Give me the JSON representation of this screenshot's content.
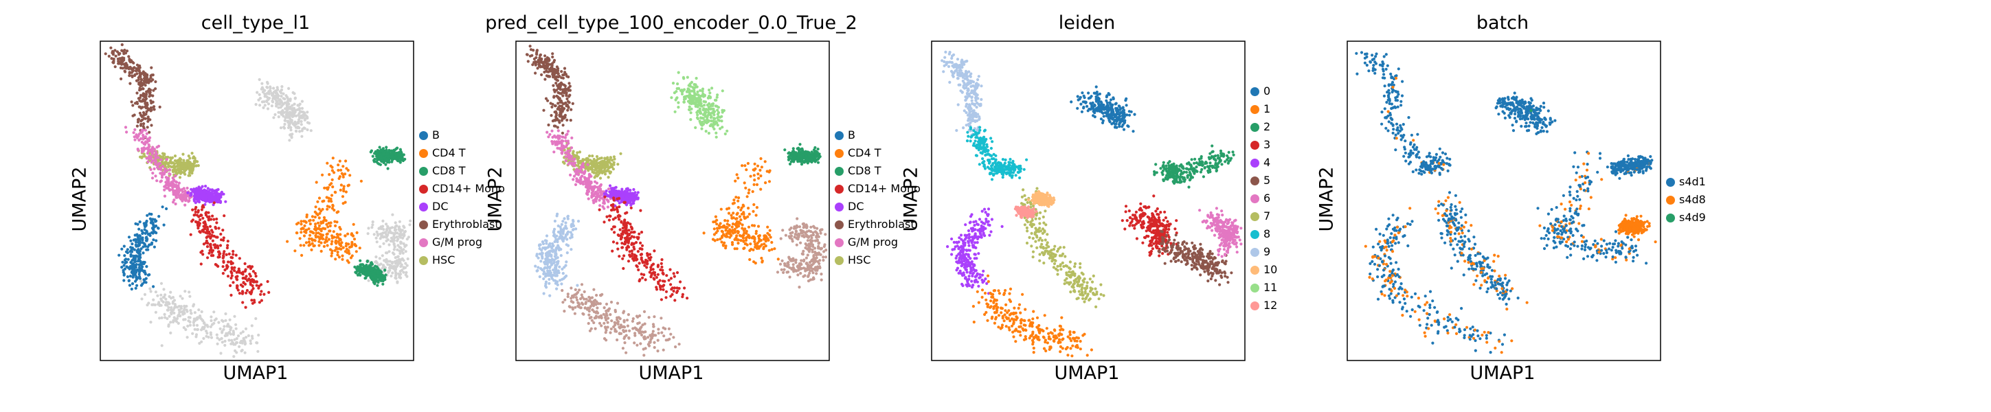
{
  "chart_data": [
    {
      "type": "scatter",
      "title": "cell_type_l1",
      "xlabel": "UMAP1",
      "ylabel": "UMAP2",
      "grid": false,
      "legend_position": "right",
      "categories": [
        {
          "name": "B",
          "color": "#1f77b4"
        },
        {
          "name": "CD4 T",
          "color": "#ff7f0e"
        },
        {
          "name": "CD8 T",
          "color": "#279e68"
        },
        {
          "name": "CD14+ Mono",
          "color": "#d62728"
        },
        {
          "name": "DC",
          "color": "#aa40fc"
        },
        {
          "name": "Erythroblast",
          "color": "#8c564b"
        },
        {
          "name": "G/M prog",
          "color": "#e377c2"
        },
        {
          "name": "HSC",
          "color": "#b5bd61"
        }
      ],
      "unlabeled_color": "#d3d3d3",
      "clusters": [
        {
          "label": "Erythroblast",
          "path": [
            [
              0.05,
              0.96
            ],
            [
              0.15,
              0.88
            ],
            [
              0.14,
              0.74
            ]
          ],
          "spread": 0.03
        },
        {
          "label": "HSC",
          "path": [
            [
              0.15,
              0.65
            ],
            [
              0.25,
              0.6
            ],
            [
              0.3,
              0.62
            ]
          ],
          "spread": 0.025
        },
        {
          "label": "G/M prog",
          "path": [
            [
              0.12,
              0.72
            ],
            [
              0.22,
              0.56
            ],
            [
              0.28,
              0.5
            ]
          ],
          "spread": 0.025
        },
        {
          "label": "DC",
          "path": [
            [
              0.3,
              0.52
            ],
            [
              0.38,
              0.51
            ]
          ],
          "spread": 0.02
        },
        {
          "label": "CD14+ Mono",
          "path": [
            [
              0.31,
              0.48
            ],
            [
              0.38,
              0.33
            ],
            [
              0.51,
              0.21
            ]
          ],
          "spread": 0.04
        },
        {
          "label": "B",
          "path": [
            [
              0.18,
              0.44
            ],
            [
              0.1,
              0.33
            ],
            [
              0.12,
              0.25
            ]
          ],
          "spread": 0.035
        },
        {
          "label": null,
          "path": [
            [
              0.18,
              0.2
            ],
            [
              0.3,
              0.12
            ],
            [
              0.48,
              0.05
            ]
          ],
          "spread": 0.05
        },
        {
          "label": "CD4 T",
          "path": [
            [
              0.77,
              0.62
            ],
            [
              0.72,
              0.45
            ],
            [
              0.65,
              0.4
            ],
            [
              0.75,
              0.38
            ],
            [
              0.8,
              0.35
            ]
          ],
          "spread": 0.045
        },
        {
          "label": "CD8 T",
          "path": [
            [
              0.88,
              0.64
            ],
            [
              0.96,
              0.64
            ]
          ],
          "spread": 0.02
        },
        {
          "label": null,
          "path": [
            [
              0.88,
              0.4
            ],
            [
              0.96,
              0.4
            ],
            [
              0.95,
              0.28
            ],
            [
              0.86,
              0.3
            ]
          ],
          "spread": 0.035
        },
        {
          "label": "CD8 T",
          "path": [
            [
              0.83,
              0.29
            ],
            [
              0.9,
              0.26
            ]
          ],
          "spread": 0.02
        },
        {
          "label": null,
          "path": [
            [
              0.53,
              0.84
            ],
            [
              0.6,
              0.8
            ],
            [
              0.63,
              0.73
            ]
          ],
          "spread": 0.04
        }
      ]
    },
    {
      "type": "scatter",
      "title": "pred_cell_type_100_encoder_0.0_True_2",
      "xlabel": "UMAP1",
      "ylabel": "UMAP2",
      "grid": false,
      "legend_position": "right",
      "categories": [
        {
          "name": "B",
          "color": "#1f77b4"
        },
        {
          "name": "CD4 T",
          "color": "#ff7f0e"
        },
        {
          "name": "CD8 T",
          "color": "#279e68"
        },
        {
          "name": "CD14+ Mono",
          "color": "#d62728"
        },
        {
          "name": "DC",
          "color": "#aa40fc"
        },
        {
          "name": "Erythroblast",
          "color": "#8c564b"
        },
        {
          "name": "G/M prog",
          "color": "#e377c2"
        },
        {
          "name": "HSC",
          "color": "#b5bd61"
        }
      ],
      "extra_colors": [
        "#c49c94",
        "#98df8a",
        "#aec7e8"
      ],
      "clusters": [
        {
          "color_index": 5,
          "path": [
            [
              0.05,
              0.96
            ],
            [
              0.15,
              0.88
            ],
            [
              0.14,
              0.74
            ]
          ],
          "spread": 0.03
        },
        {
          "color_index": 7,
          "path": [
            [
              0.15,
              0.65
            ],
            [
              0.25,
              0.6
            ],
            [
              0.3,
              0.62
            ]
          ],
          "spread": 0.025
        },
        {
          "color_index": 6,
          "path": [
            [
              0.12,
              0.72
            ],
            [
              0.22,
              0.56
            ],
            [
              0.28,
              0.5
            ]
          ],
          "spread": 0.025
        },
        {
          "color_index": 4,
          "path": [
            [
              0.3,
              0.52
            ],
            [
              0.38,
              0.51
            ]
          ],
          "spread": 0.02
        },
        {
          "color_index": 3,
          "path": [
            [
              0.31,
              0.48
            ],
            [
              0.38,
              0.33
            ],
            [
              0.51,
              0.21
            ]
          ],
          "spread": 0.04
        },
        {
          "extra_index": 2,
          "path": [
            [
              0.18,
              0.44
            ],
            [
              0.1,
              0.33
            ],
            [
              0.12,
              0.25
            ]
          ],
          "spread": 0.035
        },
        {
          "extra_index": 0,
          "path": [
            [
              0.18,
              0.2
            ],
            [
              0.3,
              0.12
            ],
            [
              0.48,
              0.05
            ]
          ],
          "spread": 0.05
        },
        {
          "color_index": 1,
          "path": [
            [
              0.77,
              0.62
            ],
            [
              0.72,
              0.45
            ],
            [
              0.65,
              0.4
            ],
            [
              0.75,
              0.38
            ],
            [
              0.8,
              0.35
            ]
          ],
          "spread": 0.045
        },
        {
          "color_index": 2,
          "path": [
            [
              0.88,
              0.64
            ],
            [
              0.96,
              0.64
            ]
          ],
          "spread": 0.02
        },
        {
          "extra_index": 0,
          "path": [
            [
              0.88,
              0.4
            ],
            [
              0.96,
              0.4
            ],
            [
              0.95,
              0.28
            ],
            [
              0.86,
              0.3
            ]
          ],
          "spread": 0.035
        },
        {
          "extra_index": 1,
          "path": [
            [
              0.53,
              0.84
            ],
            [
              0.6,
              0.8
            ],
            [
              0.63,
              0.73
            ]
          ],
          "spread": 0.04
        }
      ]
    },
    {
      "type": "scatter",
      "title": "leiden",
      "xlabel": "UMAP1",
      "ylabel": "UMAP2",
      "grid": false,
      "legend_position": "right",
      "categories": [
        {
          "name": "0",
          "color": "#1f77b4"
        },
        {
          "name": "1",
          "color": "#ff7f0e"
        },
        {
          "name": "2",
          "color": "#279e68"
        },
        {
          "name": "3",
          "color": "#d62728"
        },
        {
          "name": "4",
          "color": "#aa40fc"
        },
        {
          "name": "5",
          "color": "#8c564b"
        },
        {
          "name": "6",
          "color": "#e377c2"
        },
        {
          "name": "7",
          "color": "#b5bd61"
        },
        {
          "name": "8",
          "color": "#17becf"
        },
        {
          "name": "9",
          "color": "#aec7e8"
        },
        {
          "name": "10",
          "color": "#ffbb78"
        },
        {
          "name": "11",
          "color": "#98df8a"
        },
        {
          "name": "12",
          "color": "#ff9896"
        }
      ],
      "clusters": [
        {
          "color_index": 9,
          "path": [
            [
              0.05,
              0.96
            ],
            [
              0.13,
              0.86
            ],
            [
              0.13,
              0.72
            ]
          ],
          "spread": 0.03
        },
        {
          "color_index": 8,
          "path": [
            [
              0.13,
              0.72
            ],
            [
              0.2,
              0.6
            ],
            [
              0.27,
              0.6
            ]
          ],
          "spread": 0.025
        },
        {
          "color_index": 7,
          "path": [
            [
              0.3,
              0.52
            ],
            [
              0.35,
              0.36
            ],
            [
              0.45,
              0.27
            ],
            [
              0.51,
              0.2
            ]
          ],
          "spread": 0.035
        },
        {
          "color_index": 10,
          "path": [
            [
              0.33,
              0.51
            ],
            [
              0.38,
              0.5
            ]
          ],
          "spread": 0.015
        },
        {
          "color_index": 4,
          "path": [
            [
              0.18,
              0.45
            ],
            [
              0.09,
              0.33
            ],
            [
              0.15,
              0.24
            ]
          ],
          "spread": 0.035
        },
        {
          "color_index": 1,
          "path": [
            [
              0.18,
              0.2
            ],
            [
              0.3,
              0.1
            ],
            [
              0.48,
              0.05
            ]
          ],
          "spread": 0.05
        },
        {
          "color_index": 0,
          "path": [
            [
              0.5,
              0.81
            ],
            [
              0.57,
              0.78
            ],
            [
              0.61,
              0.76
            ]
          ],
          "spread": 0.035
        },
        {
          "color_index": 2,
          "path": [
            [
              0.74,
              0.6
            ],
            [
              0.79,
              0.58
            ],
            [
              0.94,
              0.64
            ]
          ],
          "spread": 0.03
        },
        {
          "color_index": 3,
          "path": [
            [
              0.64,
              0.45
            ],
            [
              0.74,
              0.42
            ],
            [
              0.72,
              0.36
            ]
          ],
          "spread": 0.04
        },
        {
          "color_index": 5,
          "path": [
            [
              0.74,
              0.36
            ],
            [
              0.85,
              0.32
            ],
            [
              0.93,
              0.28
            ]
          ],
          "spread": 0.035
        },
        {
          "color_index": 6,
          "path": [
            [
              0.89,
              0.44
            ],
            [
              0.96,
              0.4
            ],
            [
              0.94,
              0.36
            ]
          ],
          "spread": 0.03
        },
        {
          "color_index": 12,
          "path": [
            [
              0.28,
              0.47
            ],
            [
              0.32,
              0.46
            ]
          ],
          "spread": 0.012
        }
      ]
    },
    {
      "type": "scatter",
      "title": "batch",
      "xlabel": "UMAP1",
      "ylabel": "UMAP2",
      "grid": false,
      "legend_position": "right",
      "categories": [
        {
          "name": "s4d1",
          "color": "#1f77b4"
        },
        {
          "name": "s4d8",
          "color": "#ff7f0e"
        },
        {
          "name": "s4d9",
          "color": "#279e68"
        }
      ],
      "clusters": [
        {
          "color_index": 0,
          "path": [
            [
              0.05,
              0.96
            ],
            [
              0.15,
              0.88
            ],
            [
              0.14,
              0.74
            ],
            [
              0.25,
              0.6
            ],
            [
              0.3,
              0.62
            ]
          ],
          "spread": 0.03,
          "mix": 0.05
        },
        {
          "color_index": 0,
          "path": [
            [
              0.31,
              0.5
            ],
            [
              0.38,
              0.33
            ],
            [
              0.51,
              0.21
            ]
          ],
          "spread": 0.04,
          "mix": 0.25
        },
        {
          "color_index": 0,
          "path": [
            [
              0.18,
              0.44
            ],
            [
              0.1,
              0.33
            ],
            [
              0.15,
              0.22
            ],
            [
              0.3,
              0.12
            ],
            [
              0.48,
              0.05
            ]
          ],
          "spread": 0.045,
          "mix": 0.3
        },
        {
          "color_index": 0,
          "path": [
            [
              0.5,
              0.81
            ],
            [
              0.58,
              0.78
            ],
            [
              0.62,
              0.74
            ]
          ],
          "spread": 0.035,
          "mix": 0.02,
          "mix_with": 2
        },
        {
          "color_index": 0,
          "path": [
            [
              0.77,
              0.62
            ],
            [
              0.72,
              0.45
            ],
            [
              0.65,
              0.4
            ],
            [
              0.8,
              0.35
            ],
            [
              0.92,
              0.35
            ]
          ],
          "spread": 0.045,
          "mix": 0.2
        },
        {
          "color_index": 1,
          "path": [
            [
              0.88,
              0.42
            ],
            [
              0.94,
              0.42
            ]
          ],
          "spread": 0.02,
          "mix": 0.0
        },
        {
          "color_index": 0,
          "path": [
            [
              0.85,
              0.6
            ],
            [
              0.96,
              0.62
            ]
          ],
          "spread": 0.02,
          "mix": 0.05
        }
      ]
    }
  ]
}
